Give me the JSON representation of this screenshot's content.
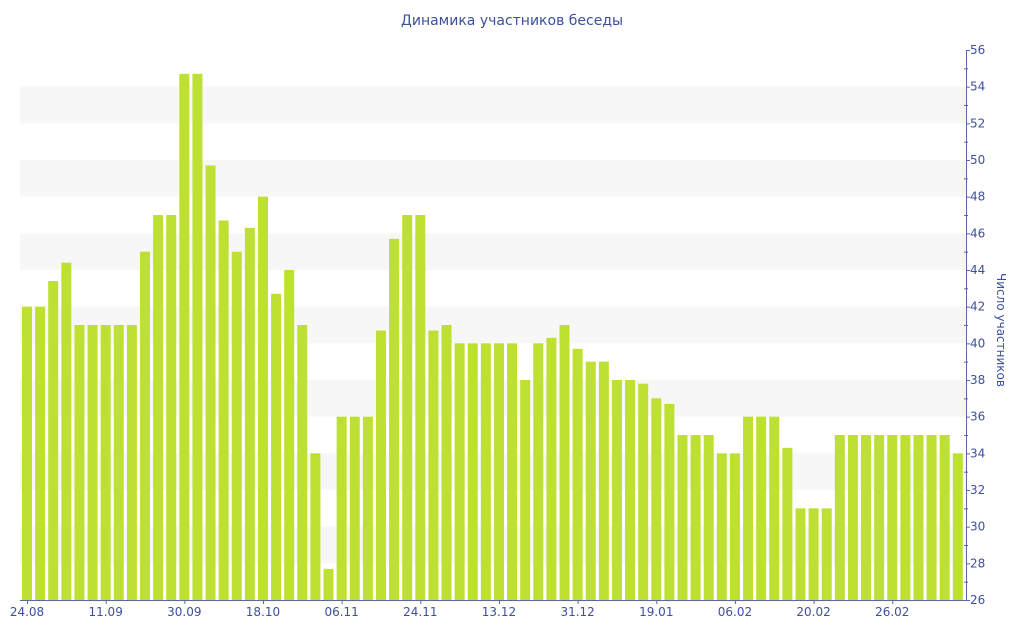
{
  "chart_data": {
    "type": "bar",
    "title": "Динамика участников беседы",
    "xlabel": "",
    "ylabel": "Число участников",
    "ylim": [
      26,
      56
    ],
    "y_ticks": [
      26,
      28,
      30,
      32,
      34,
      36,
      38,
      40,
      42,
      44,
      46,
      48,
      50,
      52,
      54,
      56
    ],
    "y_axis_position": "right",
    "grid": "alternating bands",
    "x_tick_labels": [
      {
        "index": 0,
        "label": "24.08"
      },
      {
        "index": 6,
        "label": "11.09"
      },
      {
        "index": 12,
        "label": "30.09"
      },
      {
        "index": 18,
        "label": "18.10"
      },
      {
        "index": 24,
        "label": "06.11"
      },
      {
        "index": 30,
        "label": "24.11"
      },
      {
        "index": 36,
        "label": "13.12"
      },
      {
        "index": 42,
        "label": "31.12"
      },
      {
        "index": 48,
        "label": "19.01"
      },
      {
        "index": 54,
        "label": "06.02"
      },
      {
        "index": 60,
        "label": "20.02"
      },
      {
        "index": 66,
        "label": "26.02"
      }
    ],
    "values": [
      42,
      42,
      43.4,
      44.4,
      41,
      41,
      41,
      41,
      41,
      45,
      47,
      47,
      54.7,
      54.7,
      49.7,
      46.7,
      45,
      46.3,
      48,
      42.7,
      44,
      41,
      34,
      27.7,
      36,
      36,
      36,
      40.7,
      45.7,
      47,
      47,
      40.7,
      41,
      40,
      40,
      40,
      40,
      40,
      38,
      40,
      40.3,
      41,
      39.7,
      39,
      39,
      38,
      38,
      37.8,
      37,
      36.7,
      35,
      35,
      35,
      34,
      34,
      36,
      36,
      36,
      34.3,
      31,
      31,
      31,
      35,
      35,
      35,
      35,
      35,
      35,
      35,
      35,
      35,
      34
    ],
    "colors": {
      "bar": "#bde032",
      "axis": "#5867a8",
      "text": "#3d4f9f",
      "band": "#f7f7f7"
    }
  }
}
